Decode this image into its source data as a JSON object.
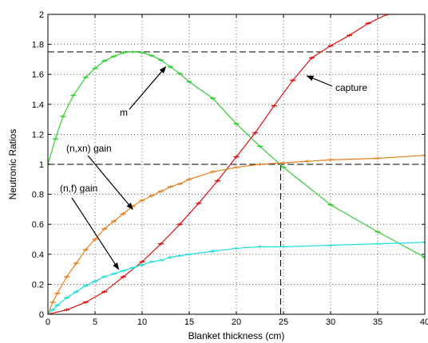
{
  "chart_data": {
    "type": "line",
    "xlabel": "Blanket thickness (cm)",
    "ylabel": "Neutronic Ratios",
    "xlim": [
      0,
      40
    ],
    "ylim": [
      0,
      2
    ],
    "xticks": [
      0,
      5,
      10,
      15,
      20,
      25,
      30,
      35,
      40
    ],
    "yticks": [
      0,
      0.2,
      0.4,
      0.6,
      0.8,
      1,
      1.2,
      1.4,
      1.6,
      1.8,
      2
    ],
    "xtick_labels": [
      "0",
      "5",
      "10",
      "15",
      "20",
      "25",
      "30",
      "35",
      "40"
    ],
    "ytick_labels": [
      "0",
      "0.2",
      "0.4",
      "0.6",
      "0.8",
      "1",
      "1.2",
      "1.4",
      "1.6",
      "1.8",
      "2"
    ],
    "grid": true,
    "series": [
      {
        "name": "m",
        "color": "#33cc33",
        "x": [
          0,
          0.8,
          1.6,
          2.7,
          4,
          5,
          6,
          7,
          8,
          9,
          10,
          11,
          12,
          13,
          14,
          15,
          17.5,
          20,
          22.5,
          25,
          30,
          35,
          40
        ],
        "y": [
          1.0,
          1.17,
          1.32,
          1.46,
          1.58,
          1.64,
          1.69,
          1.72,
          1.745,
          1.75,
          1.745,
          1.725,
          1.695,
          1.65,
          1.605,
          1.55,
          1.44,
          1.27,
          1.12,
          0.98,
          0.73,
          0.55,
          0.38
        ]
      },
      {
        "name": "capture",
        "color": "#dd1111",
        "x": [
          0,
          2,
          4,
          6,
          8,
          10,
          12,
          14,
          16,
          18,
          20,
          22,
          24,
          26,
          28,
          30,
          32,
          34,
          36
        ],
        "y": [
          0,
          0.03,
          0.08,
          0.15,
          0.25,
          0.35,
          0.47,
          0.6,
          0.74,
          0.89,
          1.05,
          1.21,
          1.39,
          1.56,
          1.71,
          1.79,
          1.86,
          1.94,
          2.0
        ]
      },
      {
        "name": "(n,xn) gain",
        "color": "#e87f1e",
        "x": [
          0,
          0.5,
          1,
          2,
          3,
          4,
          5,
          6,
          7,
          8,
          9,
          10,
          11,
          12,
          13,
          14,
          15,
          17.5,
          20,
          22.5,
          25,
          27.5,
          30,
          35,
          40
        ],
        "y": [
          0,
          0.08,
          0.14,
          0.25,
          0.34,
          0.43,
          0.5,
          0.57,
          0.62,
          0.67,
          0.72,
          0.76,
          0.79,
          0.82,
          0.85,
          0.87,
          0.9,
          0.95,
          0.98,
          1.0,
          1.01,
          1.02,
          1.03,
          1.04,
          1.06
        ]
      },
      {
        "name": "(n,f) gain",
        "color": "#22dddd",
        "x": [
          0,
          0.5,
          1,
          2,
          3,
          4,
          5,
          6,
          7,
          8,
          9,
          10,
          11,
          12,
          13,
          14,
          15,
          17.5,
          20,
          22.5,
          25,
          30,
          35,
          40
        ],
        "y": [
          0,
          0.03,
          0.06,
          0.11,
          0.15,
          0.19,
          0.22,
          0.25,
          0.27,
          0.29,
          0.31,
          0.33,
          0.35,
          0.36,
          0.38,
          0.39,
          0.4,
          0.42,
          0.44,
          0.45,
          0.45,
          0.46,
          0.47,
          0.48
        ]
      }
    ],
    "reference_lines": [
      {
        "type": "horizontal",
        "y": 1.75,
        "style": "dashed",
        "color": "#000000"
      },
      {
        "type": "horizontal",
        "y": 1.0,
        "style": "dashed",
        "color": "#000000"
      },
      {
        "type": "vertical",
        "x": 24.7,
        "y_range": [
          0,
          1.0
        ],
        "style": "dashed",
        "color": "#000000"
      }
    ],
    "annotations": [
      {
        "text": "m",
        "series": "m",
        "arrow_target": [
          12.5,
          1.65
        ]
      },
      {
        "text": "capture",
        "series": "capture",
        "arrow_target": [
          27.5,
          1.59
        ]
      },
      {
        "text": "(n,xn) gain",
        "series": "(n,xn) gain",
        "arrow_target": [
          9,
          0.7
        ]
      },
      {
        "text": "(n,f) gain",
        "series": "(n,f) gain",
        "arrow_target": [
          7.5,
          0.3
        ]
      }
    ]
  }
}
